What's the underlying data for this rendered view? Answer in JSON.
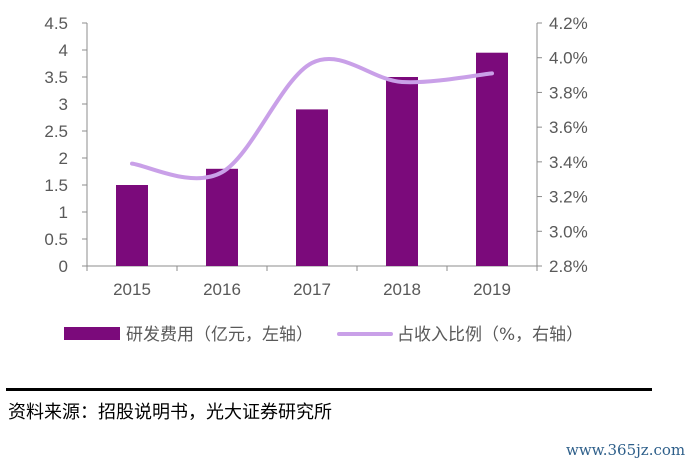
{
  "chart_data": {
    "type": "bar+line",
    "categories": [
      "2015",
      "2016",
      "2017",
      "2018",
      "2019"
    ],
    "series": [
      {
        "name": "研发费用（亿元，左轴）",
        "type": "bar",
        "axis": "left",
        "color": "#7b0a7b",
        "values": [
          1.5,
          1.8,
          2.9,
          3.5,
          3.95
        ]
      },
      {
        "name": "占收入比例（%，右轴）",
        "type": "line",
        "axis": "right",
        "color": "#c9a0e8",
        "values": [
          3.39,
          3.34,
          3.97,
          3.86,
          3.91
        ]
      }
    ],
    "y_left": {
      "min": 0,
      "max": 4.5,
      "ticks": [
        "0",
        "0.5",
        "1",
        "1.5",
        "2",
        "2.5",
        "3",
        "3.5",
        "4",
        "4.5"
      ]
    },
    "y_right": {
      "min": 2.8,
      "max": 4.2,
      "ticks": [
        "2.8%",
        "3.0%",
        "3.2%",
        "3.4%",
        "3.6%",
        "3.8%",
        "4.0%",
        "4.2%"
      ]
    },
    "grid": false,
    "legend": "bottom"
  },
  "source_note": "资料来源：招股说明书，光大证券研究所",
  "watermark": "www.365jz.com"
}
